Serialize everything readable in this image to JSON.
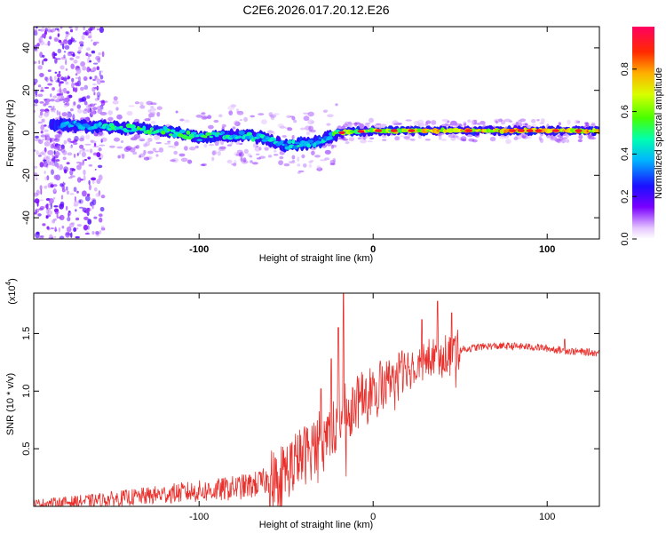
{
  "title": "C2E6.2026.017.20.12.E26",
  "chart_data": [
    {
      "type": "heatmap",
      "name": "spectrogram",
      "xlabel": "Height of straight line (km)",
      "ylabel": "Frequency (Hz)",
      "xlim": [
        -195,
        130
      ],
      "ylim": [
        -50,
        50
      ],
      "xticks": [
        -100,
        0,
        100
      ],
      "yticks": [
        40,
        20,
        0,
        -20,
        -40
      ],
      "colorbar": {
        "label": "Normalized spectral amplitude",
        "range": [
          0,
          1
        ],
        "ticks": [
          0.0,
          0.2,
          0.4,
          0.6,
          0.8
        ],
        "tick_labels": [
          "0.0",
          "0.2",
          "0.4",
          "0.6",
          "0.8"
        ]
      },
      "ridge_profile": [
        {
          "x": -185,
          "f": 4,
          "amp": 0.3
        },
        {
          "x": -160,
          "f": 3,
          "amp": 0.45
        },
        {
          "x": -140,
          "f": 2,
          "amp": 0.5
        },
        {
          "x": -120,
          "f": 1,
          "amp": 0.5
        },
        {
          "x": -100,
          "f": -2,
          "amp": 0.5
        },
        {
          "x": -80,
          "f": -1,
          "amp": 0.45
        },
        {
          "x": -65,
          "f": -2,
          "amp": 0.45
        },
        {
          "x": -50,
          "f": -6,
          "amp": 0.4
        },
        {
          "x": -40,
          "f": -5,
          "amp": 0.45
        },
        {
          "x": -30,
          "f": -4,
          "amp": 0.4
        },
        {
          "x": -25,
          "f": -2,
          "amp": 0.4
        },
        {
          "x": -20,
          "f": 0,
          "amp": 0.6
        },
        {
          "x": 0,
          "f": 1,
          "amp": 0.65
        },
        {
          "x": 30,
          "f": 1,
          "amp": 0.7
        },
        {
          "x": 60,
          "f": 1,
          "amp": 0.75
        },
        {
          "x": 90,
          "f": 1,
          "amp": 0.8
        },
        {
          "x": 130,
          "f": 1,
          "amp": 0.75
        }
      ]
    },
    {
      "type": "line",
      "name": "snr",
      "xlabel": "Height of straight line (km)",
      "ylabel": "SNR (10 * v/v)",
      "y_multiplier": "(x10",
      "y_multiplier_exp": "4",
      "y_multiplier_close": ")",
      "xlim": [
        -195,
        130
      ],
      "ylim": [
        0,
        1.85
      ],
      "xticks": [
        -100,
        0,
        100
      ],
      "yticks": [
        0.5,
        1.0,
        1.5
      ],
      "ytick_labels": [
        "0.5",
        "1.0",
        "1.5"
      ],
      "color": "#e8302c",
      "envelope": [
        {
          "x": -195,
          "y": 0.02
        },
        {
          "x": -160,
          "y": 0.05
        },
        {
          "x": -130,
          "y": 0.09
        },
        {
          "x": -110,
          "y": 0.12
        },
        {
          "x": -90,
          "y": 0.14
        },
        {
          "x": -70,
          "y": 0.18
        },
        {
          "x": -55,
          "y": 0.25
        },
        {
          "x": -45,
          "y": 0.38
        },
        {
          "x": -35,
          "y": 0.5
        },
        {
          "x": -25,
          "y": 0.65
        },
        {
          "x": -15,
          "y": 0.82
        },
        {
          "x": -5,
          "y": 0.95
        },
        {
          "x": 5,
          "y": 1.08
        },
        {
          "x": 20,
          "y": 1.22
        },
        {
          "x": 35,
          "y": 1.3
        },
        {
          "x": 50,
          "y": 1.36
        },
        {
          "x": 65,
          "y": 1.39
        },
        {
          "x": 80,
          "y": 1.39
        },
        {
          "x": 95,
          "y": 1.38
        },
        {
          "x": 110,
          "y": 1.35
        },
        {
          "x": 130,
          "y": 1.33
        }
      ],
      "spikes": [
        {
          "x": -17,
          "y": 1.85
        },
        {
          "x": -20,
          "y": 1.55
        },
        {
          "x": -24,
          "y": 1.28
        },
        {
          "x": -30,
          "y": 1.02
        },
        {
          "x": 37,
          "y": 1.78
        },
        {
          "x": 45,
          "y": 1.68
        },
        {
          "x": 28,
          "y": 1.62
        },
        {
          "x": 110,
          "y": 1.45
        }
      ]
    }
  ]
}
